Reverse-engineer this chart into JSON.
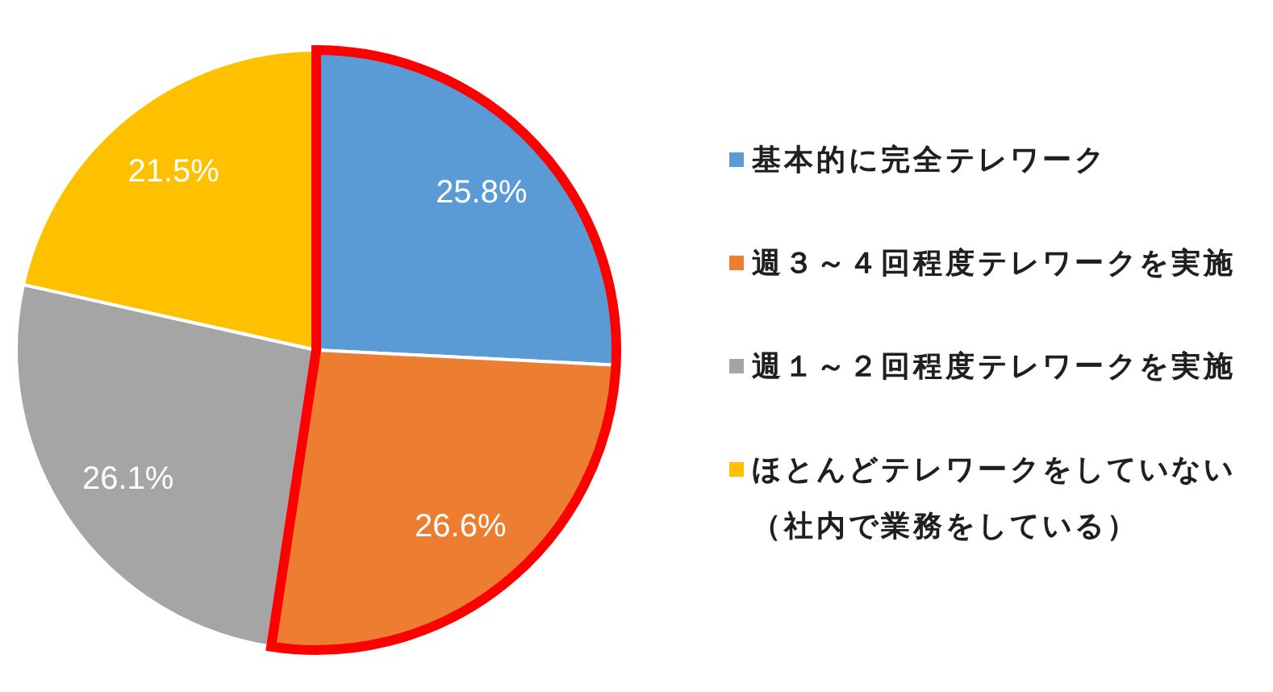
{
  "chart_data": {
    "type": "pie",
    "categories": [
      "基本的に完全テレワーク",
      "週３～４回程度テレワークを実施",
      "週１～２回程度テレワークを実施",
      "ほとんどテレワークをしていない（社内で業務をしている）"
    ],
    "values": [
      25.8,
      26.6,
      26.1,
      21.5
    ],
    "value_labels": [
      "25.8%",
      "26.6%",
      "26.1%",
      "21.5%"
    ],
    "colors": [
      "#5b9bd5",
      "#ed7d31",
      "#a5a5a5",
      "#ffc000"
    ],
    "legend": "right"
  }
}
